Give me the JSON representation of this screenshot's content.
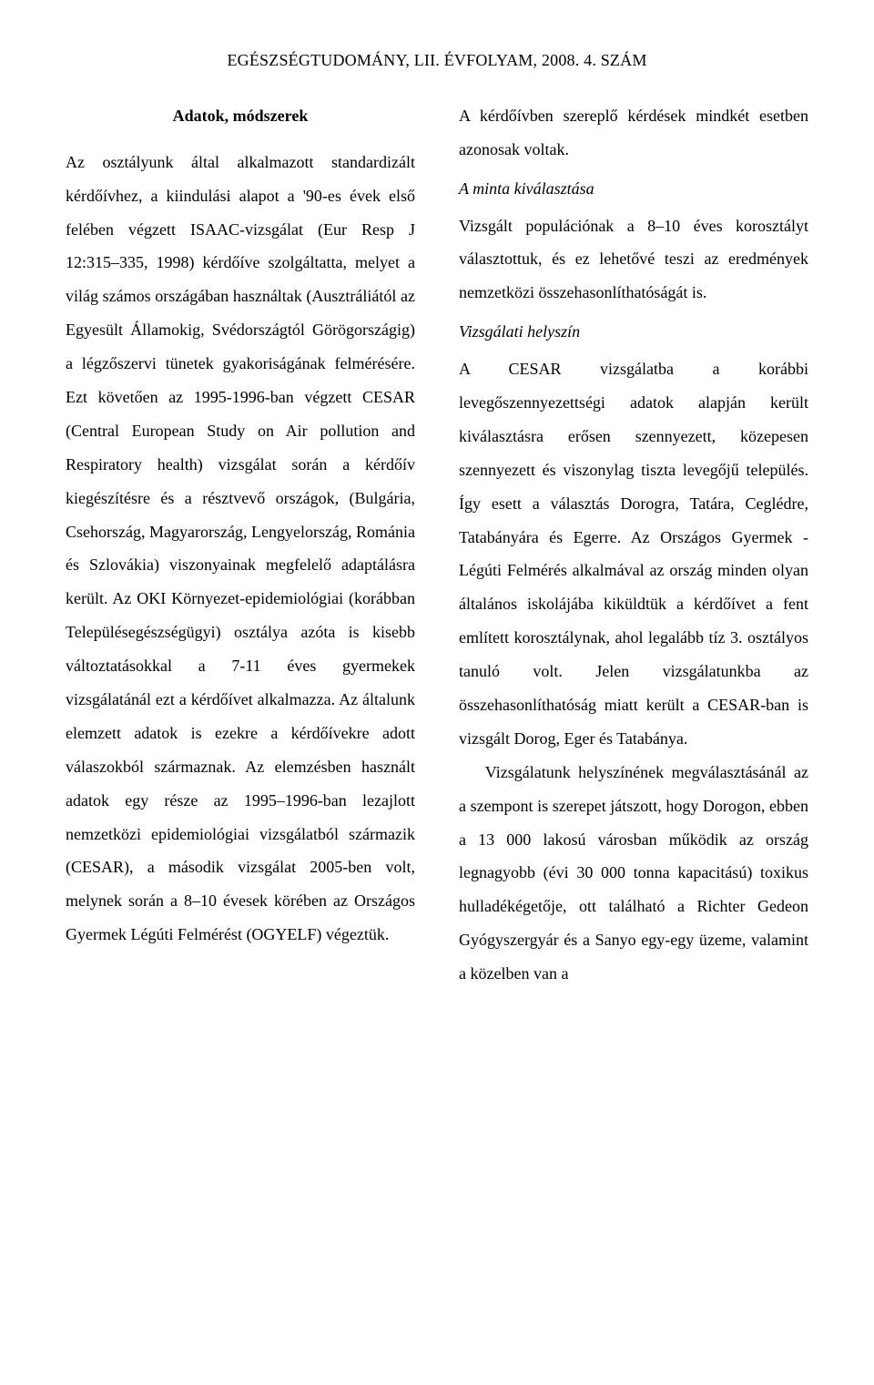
{
  "header": "EGÉSZSÉGTUDOMÁNY, LII. ÉVFOLYAM, 2008. 4. SZÁM",
  "left": {
    "title": "Adatok, módszerek",
    "p1": "Az osztályunk által alkalmazott standardizált kérdőívhez, a kiindulási alapot a '90-es évek első felében végzett ISAAC-vizsgálat (Eur Resp J 12:315–335, 1998) kérdőíve szolgáltatta, melyet a világ számos országában használtak (Ausztráliától az Egyesült Államokig, Svédországtól Görögországig) a légzőszervi tünetek gyakoriságának felmérésére. Ezt követően az 1995-1996-ban végzett CESAR (Central European Study on Air pollution and Respiratory health) vizsgálat során a kérdőív kiegészítésre és a résztvevő országok, (Bulgária, Csehország, Magyarország, Lengyelország, Románia és Szlovákia) viszonyainak megfelelő adaptálásra került. Az OKI Környezet-epidemiológiai (korábban Településegészségügyi) osztálya azóta is kisebb változtatásokkal a 7-11 éves gyermekek vizsgálatánál ezt a kérdőívet alkalmazza. Az általunk elemzett adatok is ezekre a kérdőívekre adott válaszokból származnak. Az elemzésben használt adatok egy része az 1995–1996-ban lezajlott nemzetközi epidemiológiai vizsgálatból származik (CESAR), a második vizsgálat 2005-ben volt, melynek során a 8–10 évesek körében az Országos Gyermek Légúti Felmérést (OGYELF) végeztük."
  },
  "right": {
    "p1": "A kérdőívben szereplő kérdések mindkét esetben azonosak voltak.",
    "sub1": "A minta kiválasztása",
    "p2": "Vizsgált populációnak a 8–10 éves korosztályt választottuk, és ez lehetővé teszi az eredmények nemzetközi összehasonlíthatóságát is.",
    "sub2": "Vizsgálati helyszín",
    "p3": "A CESAR vizsgálatba a korábbi levegőszennyezettségi adatok alapján került kiválasztásra erősen szennyezett, közepesen szennyezett és viszonylag tiszta levegőjű település. Így esett a választás Dorogra, Tatára, Ceglédre, Tatabányára és Egerre. Az Országos Gyermek - Légúti Felmérés alkalmával az ország minden olyan általános iskolájába kiküldtük a kérdőívet a fent említett korosztálynak, ahol legalább tíz 3. osztályos tanuló volt. Jelen vizsgálatunkba az összehasonlíthatóság miatt került a CESAR-ban is vizsgált Dorog, Eger és Tatabánya.",
    "p4": "Vizsgálatunk helyszínének megválasztásánál az a szempont is szerepet játszott, hogy Dorogon, ebben a 13 000 lakosú városban működik az ország legnagyobb (évi 30 000 tonna kapacitású) toxikus hulladékégetője, ott található a Richter Gedeon Gyógyszergyár és a Sanyo egy-egy üzeme, valamint a közelben van a"
  }
}
